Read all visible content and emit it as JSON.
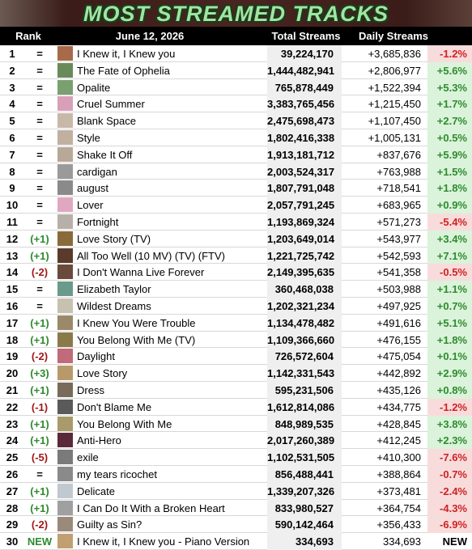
{
  "header": {
    "title": "MOST STREAMED TRACKS"
  },
  "table": {
    "columns": [
      "Rank",
      "June 12, 2026",
      "Total Streams",
      "Daily Streams"
    ],
    "rows": [
      [
        "1",
        "=",
        "I Knew it, I Knew you",
        "39,224,170",
        "+3,685,836",
        "-1.2%"
      ],
      [
        "2",
        "=",
        "The Fate of Ophelia",
        "1,444,482,941",
        "+2,806,977",
        "+5.6%"
      ],
      [
        "3",
        "=",
        "Opalite",
        "765,878,449",
        "+1,522,394",
        "+5.3%"
      ],
      [
        "4",
        "=",
        "Cruel Summer",
        "3,383,765,456",
        "+1,215,450",
        "+1.7%"
      ],
      [
        "5",
        "=",
        "Blank Space",
        "2,475,698,473",
        "+1,107,450",
        "+2.7%"
      ],
      [
        "6",
        "=",
        "Style",
        "1,802,416,338",
        "+1,005,131",
        "+0.5%"
      ],
      [
        "7",
        "=",
        "Shake It Off",
        "1,913,181,712",
        "+837,676",
        "+5.9%"
      ],
      [
        "8",
        "=",
        "cardigan",
        "2,003,524,317",
        "+763,988",
        "+1.5%"
      ],
      [
        "9",
        "=",
        "august",
        "1,807,791,048",
        "+718,541",
        "+1.8%"
      ],
      [
        "10",
        "=",
        "Lover",
        "2,057,791,245",
        "+683,965",
        "+0.9%"
      ],
      [
        "11",
        "=",
        "Fortnight",
        "1,193,869,324",
        "+571,273",
        "-5.4%"
      ],
      [
        "12",
        "(+1)",
        "Love Story (TV)",
        "1,203,649,014",
        "+543,977",
        "+3.4%"
      ],
      [
        "13",
        "(+1)",
        "All Too Well (10 MV) (TV) (FTV)",
        "1,221,725,742",
        "+542,593",
        "+7.1%"
      ],
      [
        "14",
        "(-2)",
        "I Don't Wanna Live Forever",
        "2,149,395,635",
        "+541,358",
        "-0.5%"
      ],
      [
        "15",
        "=",
        "Elizabeth Taylor",
        "360,468,038",
        "+503,988",
        "+1.1%"
      ],
      [
        "16",
        "=",
        "Wildest Dreams",
        "1,202,321,234",
        "+497,925",
        "+0.7%"
      ],
      [
        "17",
        "(+1)",
        "I Knew You Were Trouble",
        "1,134,478,482",
        "+491,616",
        "+5.1%"
      ],
      [
        "18",
        "(+1)",
        "You Belong With Me (TV)",
        "1,109,366,660",
        "+476,155",
        "+1.8%"
      ],
      [
        "19",
        "(-2)",
        "Daylight",
        "726,572,604",
        "+475,054",
        "+0.1%"
      ],
      [
        "20",
        "(+3)",
        "Love Story",
        "1,142,331,543",
        "+442,892",
        "+2.9%"
      ],
      [
        "21",
        "(+1)",
        "Dress",
        "595,231,506",
        "+435,126",
        "+0.8%"
      ],
      [
        "22",
        "(-1)",
        "Don't Blame Me",
        "1,612,814,086",
        "+434,775",
        "-1.2%"
      ],
      [
        "23",
        "(+1)",
        "You Belong With Me",
        "848,989,535",
        "+428,845",
        "+3.8%"
      ],
      [
        "24",
        "(+1)",
        "Anti-Hero",
        "2,017,260,389",
        "+412,245",
        "+2.3%"
      ],
      [
        "25",
        "(-5)",
        "exile",
        "1,102,531,505",
        "+410,300",
        "-7.6%"
      ],
      [
        "26",
        "=",
        "my tears ricochet",
        "856,488,441",
        "+388,864",
        "-0.7%"
      ],
      [
        "27",
        "(+1)",
        "Delicate",
        "1,339,207,326",
        "+373,481",
        "-2.4%"
      ],
      [
        "28",
        "(+1)",
        "I Can Do It With a Broken Heart",
        "833,980,527",
        "+364,754",
        "-4.3%"
      ],
      [
        "29",
        "(-2)",
        "Guilty as Sin?",
        "590,142,464",
        "+356,433",
        "-6.9%"
      ],
      [
        "30",
        "NEW",
        "I Knew it, I Knew you - Piano Version",
        "334,693",
        "334,693",
        "NEW"
      ]
    ]
  }
}
